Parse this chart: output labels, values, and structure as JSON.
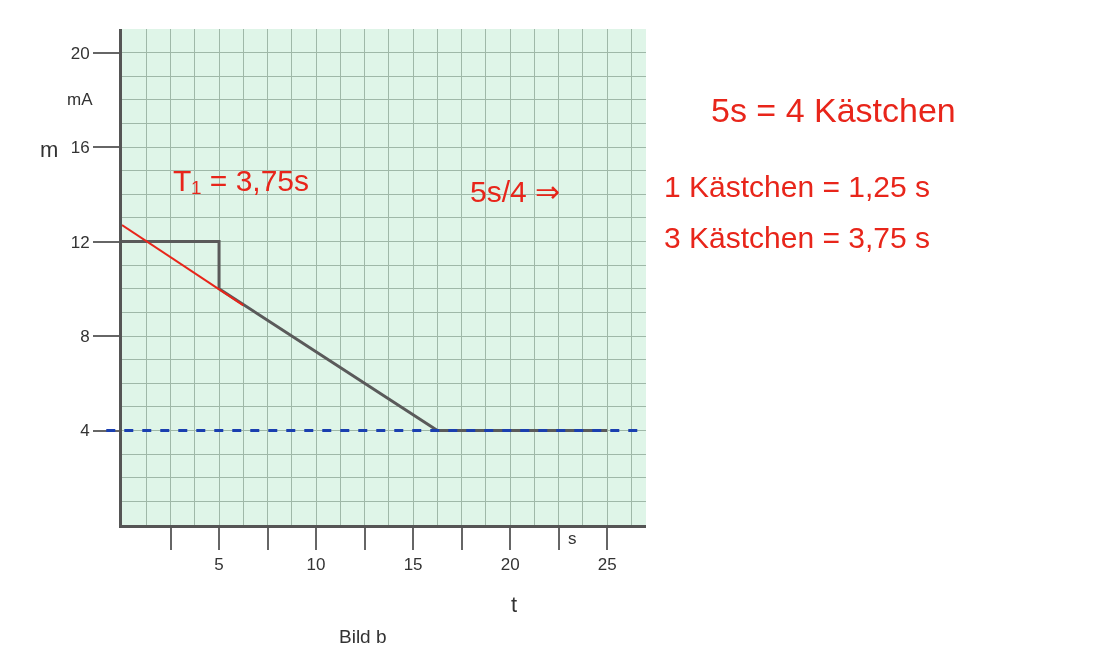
{
  "chart_data": {
    "type": "line",
    "xlabel": "t",
    "ylabel": "m",
    "x": [
      0,
      5,
      5,
      16.25,
      25
    ],
    "series": [
      {
        "color": "#5a5a5a",
        "values": [
          12,
          12,
          10,
          4,
          4
        ]
      },
      {
        "type": "line",
        "color": "#e8251a",
        "x": [
          0,
          6.25
        ],
        "values": [
          12.7,
          9.3
        ]
      }
    ],
    "xlim": [
      0,
      27
    ],
    "ylim": [
      0,
      21
    ],
    "xticks": [
      {
        "value": 2.5,
        "label": null
      },
      5,
      {
        "value": 7.5,
        "label": null
      },
      10,
      {
        "value": 12.5,
        "label": null
      },
      15,
      {
        "value": 17.5,
        "label": null
      },
      20,
      {
        "value": 22.5,
        "label": null
      },
      25
    ],
    "yticks": [
      4,
      8,
      12,
      16,
      20
    ],
    "grid": true,
    "marker": "none",
    "line_style": "solid",
    "ref_lines": [
      {
        "axis": "y",
        "value": 4,
        "color": "#1a3fb0",
        "line_style": "dashed"
      }
    ],
    "annotations": [
      "mA",
      "s",
      "Bild b",
      "T₁ = 3,75s",
      "5s = 4 Kästchen",
      "5s/4 ⇒",
      "1 Kästchen = 1,25 s",
      "3 Kästchen = 3,75 s"
    ]
  }
}
